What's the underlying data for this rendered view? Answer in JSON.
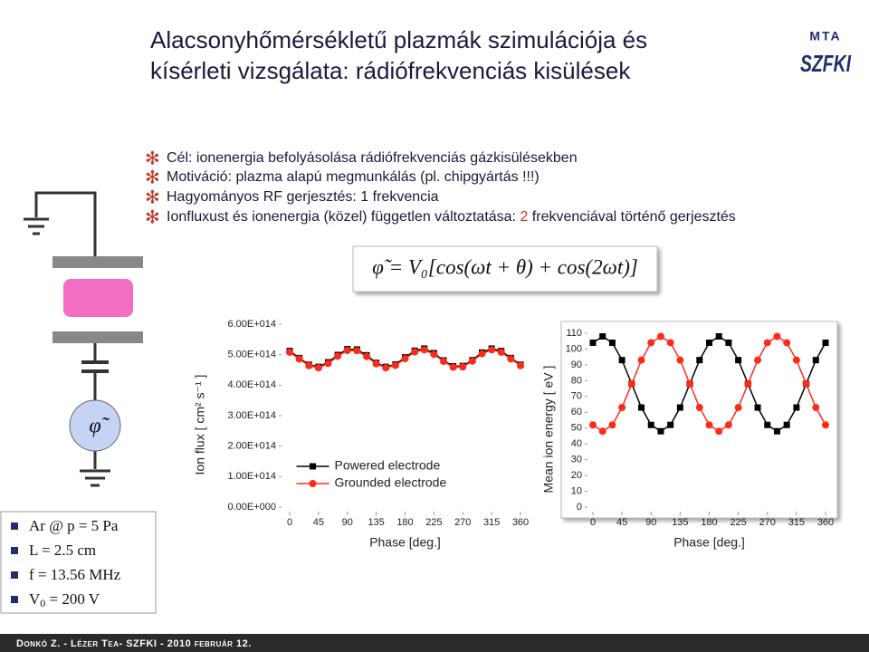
{
  "header": {
    "title_lines": [
      "Alacsonyhőmérsékletű plazmák szimulációja és",
      "kísérleti vizsgálata: rádiófrekvenciás kisülések"
    ],
    "logo_top": "MTA",
    "logo": "SZFKI"
  },
  "bullets": [
    [
      "Cél: ionenergia befolyásolása rádiófrekvenciás gázkisülésekben"
    ],
    [
      "Motiváció: plazma alapú megmunkálás (pl. chipgyártás !!!)"
    ],
    [
      "Hagyományos RF gerjesztés: 1 frekvencia"
    ],
    [
      "Ionfluxust és ionenergia (közel) független változtatása: ",
      "2",
      " frekvenciával történő gerjesztés"
    ]
  ],
  "equation": "φ̃ = V₀[cos(ωt + θ) + cos(2ωt)]",
  "circuit": {
    "source_label": "φ̃"
  },
  "parameters": [
    [
      "Ar @ p = 5 Pa"
    ],
    [
      "L = 2.5 cm"
    ],
    [
      "f =  13.56 MHz"
    ],
    [
      "V",
      "0",
      " = 200 V"
    ]
  ],
  "footer": "Donkó Z. - Lézer Tea- SZFKI - 2010 február 12.",
  "chart_data": [
    {
      "type": "line",
      "x_label": "Phase [deg.]",
      "y_label": "Ion flux [ cm² s⁻¹ ]",
      "x": [
        0,
        15,
        30,
        45,
        60,
        75,
        90,
        105,
        120,
        135,
        150,
        165,
        180,
        195,
        210,
        225,
        240,
        255,
        270,
        285,
        300,
        315,
        330,
        345,
        360
      ],
      "xlim": [
        0,
        360
      ],
      "xticks": [
        0,
        45,
        90,
        135,
        180,
        225,
        270,
        315,
        360
      ],
      "ylim": [
        0,
        600000000000000.0
      ],
      "yticks": [
        {
          "value": 0,
          "label": "0.00E+000"
        },
        {
          "value": 100000000000000.0,
          "label": "1.00E+014"
        },
        {
          "value": 200000000000000.0,
          "label": "2.00E+014"
        },
        {
          "value": 300000000000000.0,
          "label": "3.00E+014"
        },
        {
          "value": 400000000000000.0,
          "label": "4.00E+014"
        },
        {
          "value": 500000000000000.0,
          "label": "5.00E+014"
        },
        {
          "value": 600000000000000.0,
          "label": "6.00E+014"
        }
      ],
      "legend": "lower center",
      "series": [
        {
          "name": "Powered electrode",
          "color": "#000000",
          "marker": "square",
          "values": [
            512000000000000.0,
            489000000000000.0,
            467000000000000.0,
            460000000000000.0,
            475000000000000.0,
            499000000000000.0,
            518000000000000.0,
            517000000000000.0,
            498000000000000.0,
            473000000000000.0,
            460000000000000.0,
            468000000000000.0,
            491000000000000.0,
            513000000000000.0,
            520000000000000.0,
            505000000000000.0,
            481000000000000.0,
            462000000000000.0,
            463000000000000.0,
            482000000000000.0,
            507000000000000.0,
            520000000000000.0,
            512000000000000.0,
            489000000000000.0,
            467000000000000.0
          ]
        },
        {
          "name": "Grounded electrode",
          "color": "#ff2a1a",
          "marker": "circle",
          "values": [
            508000000000000.0,
            486000000000000.0,
            464000000000000.0,
            457000000000000.0,
            471000000000000.0,
            495000000000000.0,
            514000000000000.0,
            513000000000000.0,
            494000000000000.0,
            470000000000000.0,
            457000000000000.0,
            465000000000000.0,
            487000000000000.0,
            509000000000000.0,
            516000000000000.0,
            501000000000000.0,
            478000000000000.0,
            459000000000000.0,
            460000000000000.0,
            479000000000000.0,
            503000000000000.0,
            516000000000000.0,
            508000000000000.0,
            486000000000000.0,
            464000000000000.0
          ]
        }
      ]
    },
    {
      "type": "line",
      "x_label": "Phase [deg.]",
      "y_label": "Mean ion energy [ eV ]",
      "x": [
        0,
        15,
        30,
        45,
        60,
        75,
        90,
        105,
        120,
        135,
        150,
        165,
        180,
        195,
        210,
        225,
        240,
        255,
        270,
        285,
        300,
        315,
        330,
        345,
        360
      ],
      "xlim": [
        0,
        360
      ],
      "xticks": [
        0,
        45,
        90,
        135,
        180,
        225,
        270,
        315,
        360
      ],
      "ylim": [
        0,
        110
      ],
      "yticks": [
        0,
        10,
        20,
        30,
        40,
        50,
        60,
        70,
        80,
        90,
        100,
        110
      ],
      "series": [
        {
          "color": "#000000",
          "marker": "square",
          "values": [
            104,
            108,
            104,
            93,
            78,
            63,
            52,
            48,
            52,
            63,
            78,
            93,
            104,
            108,
            104,
            93,
            78,
            63,
            52,
            48,
            52,
            63,
            78,
            93,
            104
          ]
        },
        {
          "color": "#ff2a1a",
          "marker": "circle",
          "values": [
            52,
            48,
            52,
            63,
            78,
            93,
            104,
            108,
            104,
            93,
            78,
            63,
            52,
            48,
            52,
            63,
            78,
            93,
            104,
            108,
            104,
            93,
            78,
            63,
            52
          ]
        }
      ]
    }
  ]
}
